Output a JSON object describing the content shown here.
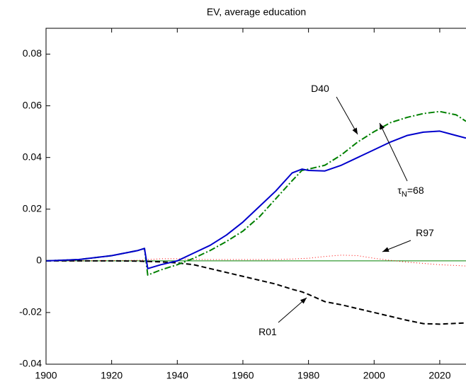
{
  "chart_data": {
    "type": "line",
    "title": "EV, average education",
    "x": [
      1900,
      1910,
      1920,
      1928,
      1930,
      1931,
      1935,
      1940,
      1945,
      1950,
      1955,
      1960,
      1965,
      1970,
      1975,
      1978,
      1980,
      1985,
      1990,
      1995,
      2000,
      2005,
      2010,
      2015,
      2020,
      2025,
      2028
    ],
    "series": [
      {
        "color": "#008000",
        "style": "solid",
        "width": 1,
        "values": [
          0,
          0,
          0,
          0,
          0,
          0,
          0,
          0,
          0,
          0,
          0,
          0,
          0,
          0,
          0,
          0,
          0,
          0,
          0,
          0,
          0,
          0,
          0,
          0,
          0,
          0,
          0
        ]
      },
      {
        "color": "#ff0000",
        "style": "dotted",
        "width": 1,
        "values": [
          0,
          0,
          0.0001,
          0.0002,
          0.0003,
          0.0005,
          0.0008,
          0.0008,
          0.0006,
          0.0005,
          0.0005,
          0.0005,
          0.0005,
          0.0005,
          0.0007,
          0.0009,
          0.001,
          0.0017,
          0.0022,
          0.002,
          0.001,
          0.0002,
          -0.0005,
          -0.001,
          -0.0015,
          -0.0018,
          -0.002
        ]
      },
      {
        "color": "#000000",
        "style": "dashed",
        "width": 2,
        "values": [
          0,
          0,
          0,
          -0.0001,
          -0.0002,
          -0.0002,
          -0.0004,
          -0.0008,
          -0.0015,
          -0.003,
          -0.0045,
          -0.006,
          -0.0075,
          -0.009,
          -0.011,
          -0.012,
          -0.013,
          -0.0158,
          -0.017,
          -0.0185,
          -0.02,
          -0.0215,
          -0.023,
          -0.0243,
          -0.0245,
          -0.0242,
          -0.024
        ]
      },
      {
        "color": "#008000",
        "style": "dashdot",
        "width": 2,
        "values": [
          0,
          0.0005,
          0.002,
          0.004,
          0.0048,
          -0.0055,
          -0.0035,
          -0.0015,
          0.001,
          0.004,
          0.0075,
          0.0115,
          0.017,
          0.024,
          0.031,
          0.035,
          0.0355,
          0.037,
          0.041,
          0.046,
          0.05,
          0.0535,
          0.0555,
          0.057,
          0.0578,
          0.0565,
          0.054
        ]
      },
      {
        "color": "#0000cc",
        "style": "solid",
        "width": 2,
        "values": [
          0,
          0.0005,
          0.002,
          0.004,
          0.0048,
          -0.003,
          -0.0015,
          0,
          0.003,
          0.006,
          0.01,
          0.015,
          0.021,
          0.027,
          0.034,
          0.0355,
          0.035,
          0.0348,
          0.037,
          0.04,
          0.043,
          0.046,
          0.0485,
          0.0498,
          0.0502,
          0.0485,
          0.0475
        ]
      }
    ],
    "annotations": [
      {
        "parts": [
          "D40"
        ]
      },
      {
        "parts": [
          "τ",
          "N",
          "=68"
        ]
      },
      {
        "parts": [
          "R97"
        ]
      },
      {
        "parts": [
          "R01"
        ]
      }
    ],
    "xlim": [
      1900,
      2028
    ],
    "ylim": [
      -0.04,
      0.09
    ],
    "xticks": [
      1900,
      1920,
      1940,
      1960,
      1980,
      2000,
      2020
    ],
    "yticks": [
      -0.04,
      -0.02,
      0,
      0.02,
      0.04,
      0.06,
      0.08
    ]
  }
}
